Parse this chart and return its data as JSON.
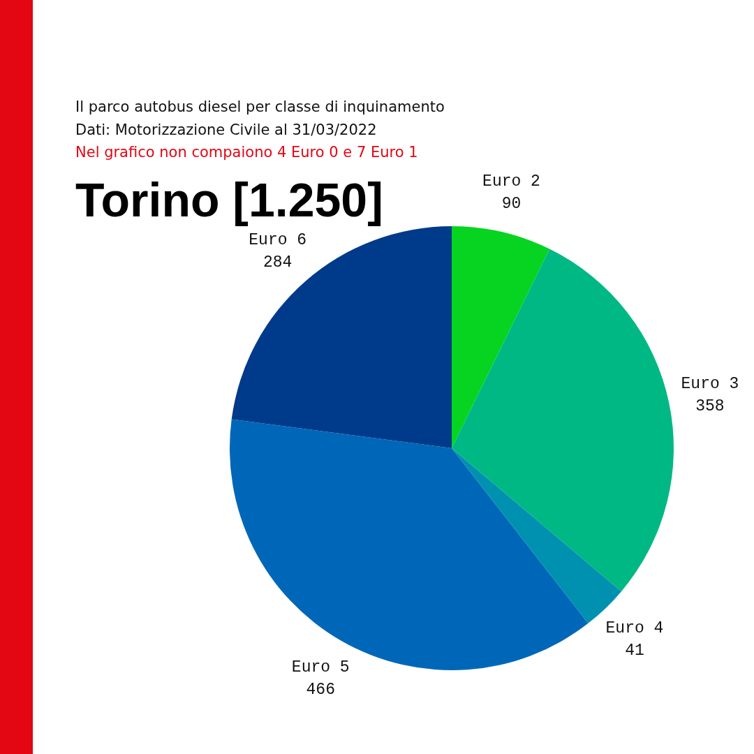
{
  "chart_data": {
    "type": "pie",
    "title": "Torino [1.250]",
    "subtitle": "Il parco autobus diesel per classe di inquinamento",
    "annotations": [
      "Dati: Motorizzazione Civile al 31/03/2022",
      "Nel grafico non compaiono 4 Euro 0 e 7 Euro 1"
    ],
    "categories": [
      "Euro 2",
      "Euro 3",
      "Euro 4",
      "Euro 5",
      "Euro 6"
    ],
    "values": [
      90,
      358,
      41,
      466,
      284
    ],
    "colors": [
      "#06d421",
      "#00b884",
      "#0091b0",
      "#0067b8",
      "#003a8a"
    ],
    "data_labels": true
  }
}
